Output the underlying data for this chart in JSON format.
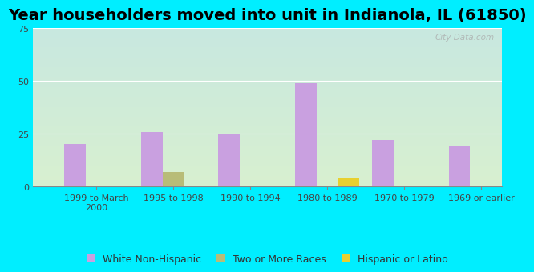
{
  "title": "Year householders moved into unit in Indianola, IL (61850)",
  "categories": [
    "1999 to March\n2000",
    "1995 to 1998",
    "1990 to 1994",
    "1980 to 1989",
    "1970 to 1979",
    "1969 or earlier"
  ],
  "series": {
    "White Non-Hispanic": [
      20,
      26,
      25,
      49,
      22,
      19
    ],
    "Two or More Races": [
      0,
      7,
      0,
      0,
      0,
      0
    ],
    "Hispanic or Latino": [
      0,
      0,
      0,
      4,
      0,
      0
    ]
  },
  "colors": {
    "White Non-Hispanic": "#c9a0e0",
    "Two or More Races": "#b8bc78",
    "Hispanic or Latino": "#e8d030"
  },
  "ylim": [
    0,
    75
  ],
  "yticks": [
    0,
    25,
    50,
    75
  ],
  "bar_width": 0.28,
  "background_color": "#00eeff",
  "bg_gradient_top": "#c8e8e0",
  "bg_gradient_bottom": "#d8f0d0",
  "watermark": "City-Data.com",
  "title_fontsize": 14,
  "tick_fontsize": 8,
  "legend_fontsize": 9
}
